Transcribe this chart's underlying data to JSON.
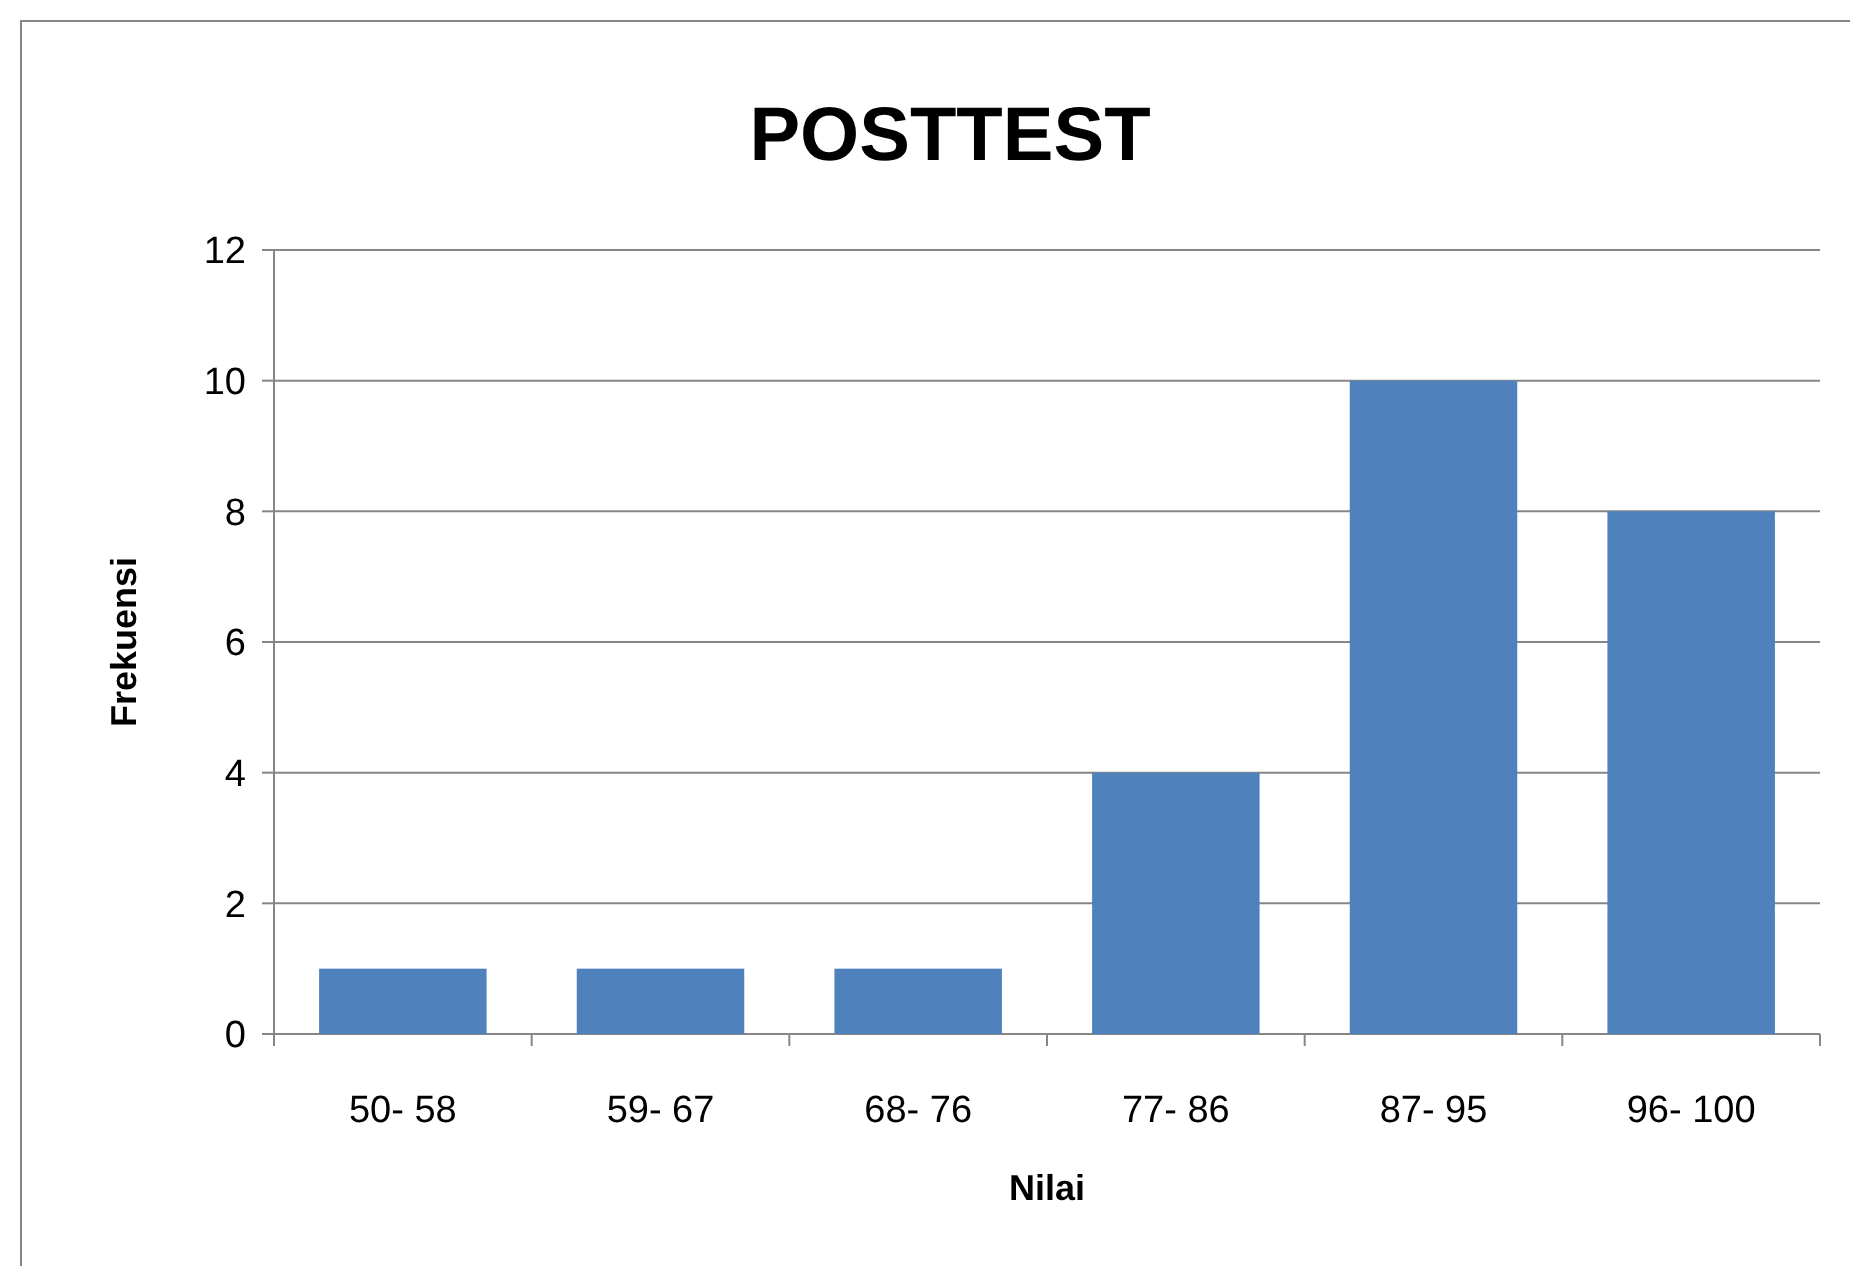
{
  "chart_data": {
    "type": "bar",
    "title": "POSTTEST",
    "xlabel": "Nilai",
    "ylabel": "Frekuensi",
    "categories": [
      "50- 58",
      "59- 67",
      "68- 76",
      "77- 86",
      "87- 95",
      "96- 100"
    ],
    "values": [
      1,
      1,
      1,
      4,
      10,
      8
    ],
    "color": "#4f81bd",
    "ylim": [
      0,
      12
    ],
    "yticks": [
      0,
      2,
      4,
      6,
      8,
      10,
      12
    ],
    "grid": "y"
  }
}
